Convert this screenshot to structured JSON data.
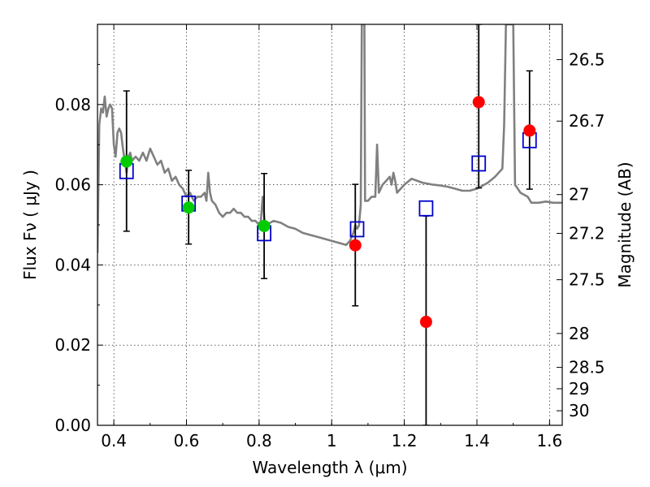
{
  "chart_data": {
    "type": "scatter",
    "xlabel": "Wavelength  λ (μm)",
    "ylabel": "Flux  Fν  ( μJy )",
    "y2label": "Magnitude (AB)",
    "xlim": [
      0.355,
      1.635
    ],
    "ylim": [
      0.0,
      0.1
    ],
    "grid": true,
    "x_ticks": [
      {
        "v": 0.4,
        "label": "0.4"
      },
      {
        "v": 0.6,
        "label": "0.6"
      },
      {
        "v": 0.8,
        "label": "0.8"
      },
      {
        "v": 1.0,
        "label": "1"
      },
      {
        "v": 1.2,
        "label": "1.2"
      },
      {
        "v": 1.4,
        "label": "1.4"
      },
      {
        "v": 1.6,
        "label": "1.6"
      }
    ],
    "y_ticks": [
      {
        "v": 0.0,
        "label": "0.00"
      },
      {
        "v": 0.02,
        "label": "0.02"
      },
      {
        "v": 0.04,
        "label": "0.04"
      },
      {
        "v": 0.06,
        "label": "0.06"
      },
      {
        "v": 0.08,
        "label": "0.08"
      }
    ],
    "y2_ticks": [
      {
        "mag": 26.5,
        "label": "26.5"
      },
      {
        "mag": 26.7,
        "label": "26.7"
      },
      {
        "mag": 27,
        "label": "27"
      },
      {
        "mag": 27.2,
        "label": "27.2"
      },
      {
        "mag": 27.5,
        "label": "27.5"
      },
      {
        "mag": 28,
        "label": "28"
      },
      {
        "mag": 28.5,
        "label": "28.5"
      },
      {
        "mag": 29,
        "label": "29"
      },
      {
        "mag": 30,
        "label": "30"
      }
    ],
    "colors": {
      "model": "#808080",
      "green": "#00cc00",
      "red": "#ff0000",
      "box": "#0000cc"
    },
    "observed_green": [
      {
        "x": 0.435,
        "y": 0.0658,
        "err_low": 0.0484,
        "err_high": 0.0834
      },
      {
        "x": 0.606,
        "y": 0.0543,
        "err_low": 0.0452,
        "err_high": 0.0636
      },
      {
        "x": 0.814,
        "y": 0.0497,
        "err_low": 0.0366,
        "err_high": 0.0628
      }
    ],
    "observed_red": [
      {
        "x": 1.065,
        "y": 0.0449,
        "err_low": 0.0298,
        "err_high": 0.0601
      },
      {
        "x": 1.26,
        "y": 0.0258,
        "err_low": 0.0,
        "err_high": 0.0522
      },
      {
        "x": 1.405,
        "y": 0.0806,
        "err_low": 0.0592,
        "err_high": 0.1
      },
      {
        "x": 1.545,
        "y": 0.0735,
        "err_low": 0.0589,
        "err_high": 0.0884
      }
    ],
    "model_photometry": [
      {
        "x": 0.435,
        "y": 0.0634
      },
      {
        "x": 0.606,
        "y": 0.0553
      },
      {
        "x": 0.814,
        "y": 0.0479
      },
      {
        "x": 1.07,
        "y": 0.0489
      },
      {
        "x": 1.26,
        "y": 0.0541
      },
      {
        "x": 1.405,
        "y": 0.0653
      },
      {
        "x": 1.545,
        "y": 0.0711
      }
    ],
    "model_spectrum": [
      [
        0.355,
        0.043
      ],
      [
        0.36,
        0.075
      ],
      [
        0.365,
        0.079
      ],
      [
        0.37,
        0.078
      ],
      [
        0.375,
        0.082
      ],
      [
        0.38,
        0.077
      ],
      [
        0.385,
        0.079
      ],
      [
        0.39,
        0.08
      ],
      [
        0.395,
        0.079
      ],
      [
        0.4,
        0.07
      ],
      [
        0.405,
        0.067
      ],
      [
        0.41,
        0.073
      ],
      [
        0.415,
        0.074
      ],
      [
        0.42,
        0.073
      ],
      [
        0.425,
        0.069
      ],
      [
        0.43,
        0.066
      ],
      [
        0.435,
        0.063
      ],
      [
        0.44,
        0.067
      ],
      [
        0.445,
        0.068
      ],
      [
        0.45,
        0.066
      ],
      [
        0.46,
        0.067
      ],
      [
        0.47,
        0.066
      ],
      [
        0.48,
        0.068
      ],
      [
        0.49,
        0.066
      ],
      [
        0.5,
        0.069
      ],
      [
        0.51,
        0.067
      ],
      [
        0.52,
        0.065
      ],
      [
        0.53,
        0.066
      ],
      [
        0.54,
        0.063
      ],
      [
        0.55,
        0.064
      ],
      [
        0.56,
        0.061
      ],
      [
        0.57,
        0.062
      ],
      [
        0.58,
        0.06
      ],
      [
        0.59,
        0.059
      ],
      [
        0.6,
        0.057
      ],
      [
        0.61,
        0.058
      ],
      [
        0.62,
        0.056
      ],
      [
        0.63,
        0.057
      ],
      [
        0.64,
        0.057
      ],
      [
        0.65,
        0.058
      ],
      [
        0.655,
        0.056
      ],
      [
        0.66,
        0.063
      ],
      [
        0.665,
        0.058
      ],
      [
        0.67,
        0.056
      ],
      [
        0.68,
        0.055
      ],
      [
        0.69,
        0.053
      ],
      [
        0.7,
        0.052
      ],
      [
        0.71,
        0.053
      ],
      [
        0.72,
        0.053
      ],
      [
        0.73,
        0.054
      ],
      [
        0.74,
        0.053
      ],
      [
        0.75,
        0.053
      ],
      [
        0.76,
        0.052
      ],
      [
        0.77,
        0.052
      ],
      [
        0.78,
        0.051
      ],
      [
        0.79,
        0.051
      ],
      [
        0.8,
        0.05
      ],
      [
        0.805,
        0.051
      ],
      [
        0.81,
        0.057
      ],
      [
        0.815,
        0.051
      ],
      [
        0.82,
        0.05
      ],
      [
        0.84,
        0.051
      ],
      [
        0.86,
        0.0505
      ],
      [
        0.88,
        0.0495
      ],
      [
        0.9,
        0.049
      ],
      [
        0.92,
        0.048
      ],
      [
        0.94,
        0.0475
      ],
      [
        0.96,
        0.047
      ],
      [
        0.98,
        0.0465
      ],
      [
        1.0,
        0.046
      ],
      [
        1.02,
        0.0455
      ],
      [
        1.04,
        0.045
      ],
      [
        1.05,
        0.046
      ],
      [
        1.06,
        0.048
      ],
      [
        1.065,
        0.05
      ],
      [
        1.07,
        0.049
      ],
      [
        1.075,
        0.0498
      ],
      [
        1.08,
        0.055
      ],
      [
        1.083,
        0.1
      ],
      [
        1.09,
        0.1
      ],
      [
        1.092,
        0.056
      ],
      [
        1.1,
        0.056
      ],
      [
        1.11,
        0.057
      ],
      [
        1.12,
        0.057
      ],
      [
        1.125,
        0.07
      ],
      [
        1.13,
        0.058
      ],
      [
        1.14,
        0.06
      ],
      [
        1.15,
        0.061
      ],
      [
        1.16,
        0.062
      ],
      [
        1.165,
        0.06
      ],
      [
        1.17,
        0.063
      ],
      [
        1.175,
        0.061
      ],
      [
        1.18,
        0.058
      ],
      [
        1.19,
        0.059
      ],
      [
        1.2,
        0.06
      ],
      [
        1.22,
        0.0615
      ],
      [
        1.25,
        0.0605
      ],
      [
        1.28,
        0.06
      ],
      [
        1.3,
        0.0598
      ],
      [
        1.32,
        0.0595
      ],
      [
        1.34,
        0.059
      ],
      [
        1.36,
        0.0585
      ],
      [
        1.38,
        0.0585
      ],
      [
        1.4,
        0.059
      ],
      [
        1.41,
        0.0595
      ],
      [
        1.43,
        0.0605
      ],
      [
        1.45,
        0.062
      ],
      [
        1.47,
        0.064
      ],
      [
        1.475,
        0.075
      ],
      [
        1.48,
        0.1
      ],
      [
        1.5,
        0.1
      ],
      [
        1.505,
        0.06
      ],
      [
        1.52,
        0.058
      ],
      [
        1.54,
        0.057
      ],
      [
        1.55,
        0.0555
      ],
      [
        1.57,
        0.0555
      ],
      [
        1.59,
        0.0558
      ],
      [
        1.61,
        0.0555
      ],
      [
        1.635,
        0.0555
      ]
    ]
  }
}
